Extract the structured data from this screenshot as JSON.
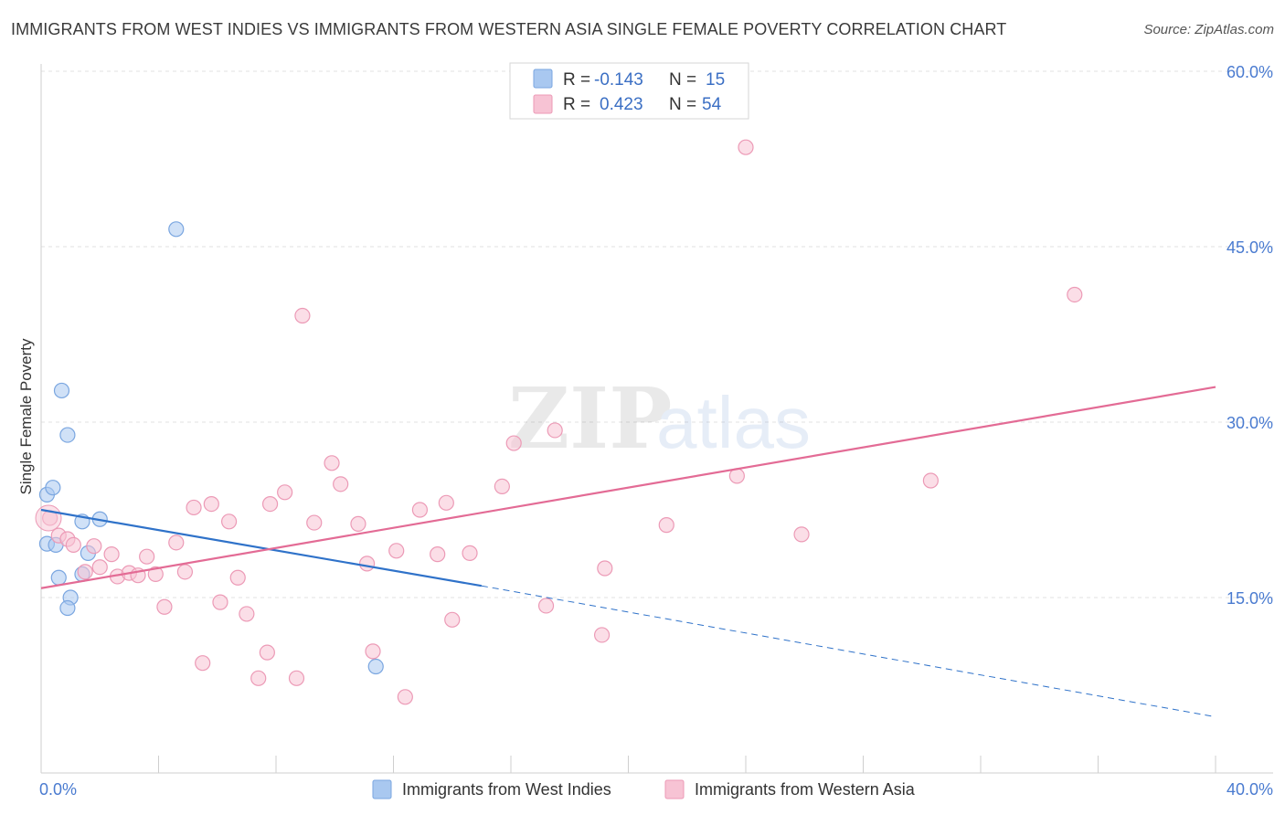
{
  "chart_data": {
    "type": "scatter",
    "title": "IMMIGRANTS FROM WEST INDIES VS IMMIGRANTS FROM WESTERN ASIA SINGLE FEMALE POVERTY CORRELATION CHART",
    "source": "Source: ZipAtlas.com",
    "xlabel": "",
    "ylabel": "Single Female Poverty",
    "xlim": [
      0,
      40
    ],
    "ylim": [
      0,
      60
    ],
    "x_tick_labels": [
      "0.0%",
      "40.0%"
    ],
    "y_ticks": [
      15,
      30,
      45,
      60
    ],
    "y_tick_labels": [
      "15.0%",
      "30.0%",
      "45.0%",
      "60.0%"
    ],
    "watermark": {
      "zip": "ZIP",
      "atlas": "atlas"
    },
    "legend": {
      "r_label": "R =",
      "n_label": "N =",
      "entries": [
        {
          "r": "-0.143",
          "n": "15"
        },
        {
          "r": "0.423",
          "n": "54"
        }
      ]
    },
    "series": [
      {
        "name": "Immigrants from West Indies",
        "color": "#a9c8f0",
        "stroke": "#7aa6e0",
        "line_color": "#2f72c9",
        "trend": {
          "x0": 0,
          "y0": 22.5,
          "x1": 15,
          "y1": 16.0,
          "x_dash_end": 40,
          "y_dash_end": 4.8
        },
        "points": [
          [
            0.2,
            23.8
          ],
          [
            0.4,
            24.4
          ],
          [
            0.2,
            19.6
          ],
          [
            0.5,
            19.5
          ],
          [
            0.7,
            32.7
          ],
          [
            0.9,
            28.9
          ],
          [
            1.4,
            21.5
          ],
          [
            2.0,
            21.7
          ],
          [
            1.6,
            18.8
          ],
          [
            1.4,
            17.0
          ],
          [
            0.6,
            16.7
          ],
          [
            1.0,
            15.0
          ],
          [
            0.9,
            14.1
          ],
          [
            4.6,
            46.5
          ],
          [
            11.4,
            9.1
          ]
        ]
      },
      {
        "name": "Immigrants from Western Asia",
        "color": "#f7c3d4",
        "stroke": "#ec9ab6",
        "line_color": "#e36b95",
        "trend": {
          "x0": 0,
          "y0": 15.8,
          "x1": 40,
          "y1": 33.0
        },
        "points": [
          [
            0.3,
            21.8
          ],
          [
            0.6,
            20.3
          ],
          [
            0.9,
            20.0
          ],
          [
            1.1,
            19.5
          ],
          [
            1.5,
            17.2
          ],
          [
            1.8,
            19.4
          ],
          [
            2.0,
            17.6
          ],
          [
            2.4,
            18.7
          ],
          [
            2.6,
            16.8
          ],
          [
            3.0,
            17.1
          ],
          [
            3.3,
            16.9
          ],
          [
            3.6,
            18.5
          ],
          [
            3.9,
            17.0
          ],
          [
            4.2,
            14.2
          ],
          [
            4.6,
            19.7
          ],
          [
            4.9,
            17.2
          ],
          [
            5.2,
            22.7
          ],
          [
            5.5,
            9.4
          ],
          [
            5.8,
            23.0
          ],
          [
            6.1,
            14.6
          ],
          [
            6.4,
            21.5
          ],
          [
            6.7,
            16.7
          ],
          [
            7.0,
            13.6
          ],
          [
            7.4,
            8.1
          ],
          [
            7.7,
            10.3
          ],
          [
            7.8,
            23.0
          ],
          [
            8.3,
            24.0
          ],
          [
            8.7,
            8.1
          ],
          [
            8.9,
            39.1
          ],
          [
            9.3,
            21.4
          ],
          [
            9.9,
            26.5
          ],
          [
            10.2,
            24.7
          ],
          [
            10.8,
            21.3
          ],
          [
            11.1,
            17.9
          ],
          [
            11.3,
            10.4
          ],
          [
            12.1,
            19.0
          ],
          [
            12.4,
            6.5
          ],
          [
            12.9,
            22.5
          ],
          [
            13.5,
            18.7
          ],
          [
            13.8,
            23.1
          ],
          [
            14.0,
            13.1
          ],
          [
            14.6,
            18.8
          ],
          [
            15.7,
            24.5
          ],
          [
            16.1,
            28.2
          ],
          [
            17.2,
            14.3
          ],
          [
            17.5,
            29.3
          ],
          [
            19.1,
            11.8
          ],
          [
            19.2,
            17.5
          ],
          [
            21.3,
            21.2
          ],
          [
            23.7,
            25.4
          ],
          [
            24.0,
            53.5
          ],
          [
            25.9,
            20.4
          ],
          [
            30.3,
            25.0
          ],
          [
            35.2,
            40.9
          ]
        ]
      }
    ]
  }
}
